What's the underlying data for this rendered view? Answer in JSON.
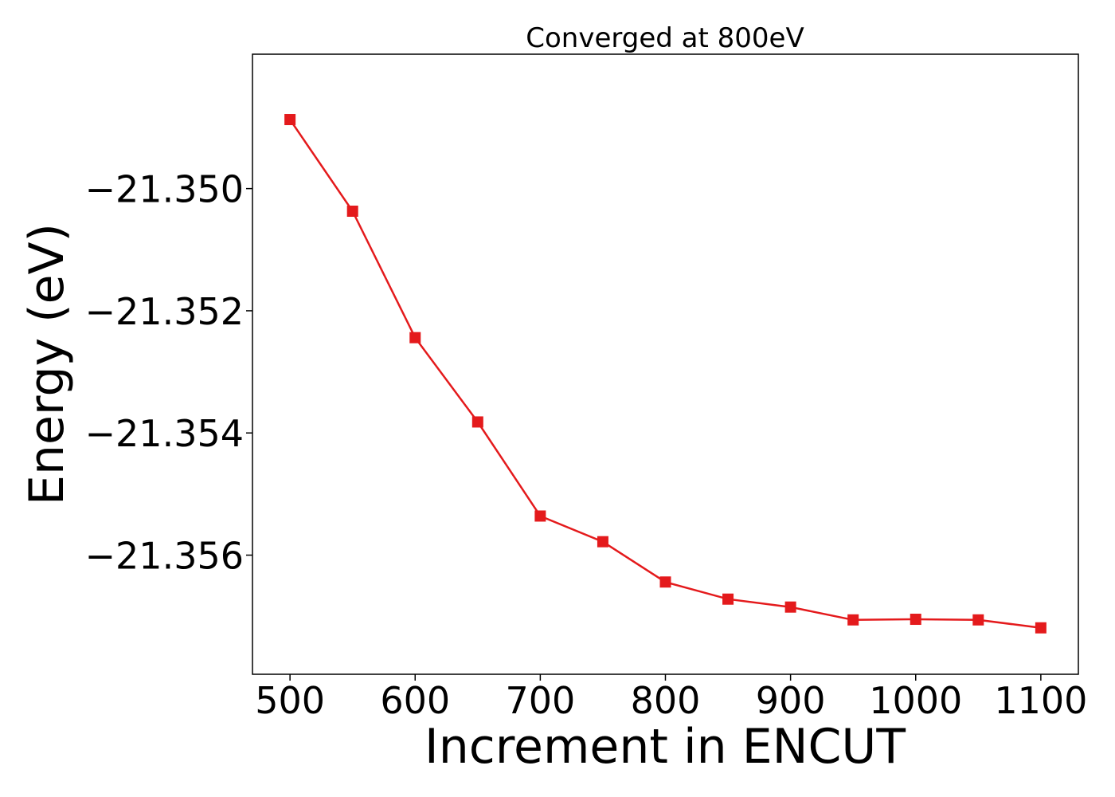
{
  "chart_data": {
    "type": "line",
    "title": "Converged at 800eV",
    "xlabel": "Increment in ENCUT",
    "ylabel": "Energy (eV)",
    "xlim": [
      470,
      1130
    ],
    "ylim": [
      -21.35795,
      -21.3478
    ],
    "xticks": [
      500,
      600,
      700,
      800,
      900,
      1000,
      1100
    ],
    "xtick_labels": [
      "500",
      "600",
      "700",
      "800",
      "900",
      "1000",
      "1100"
    ],
    "yticks": [
      -21.35,
      -21.352,
      -21.354,
      -21.356
    ],
    "ytick_labels": [
      "−21.350",
      "−21.352",
      "−21.354",
      "−21.356"
    ],
    "grid": false,
    "legend": "none",
    "series": [
      {
        "color": "#e41a1c",
        "marker": "square",
        "x": [
          500,
          550,
          600,
          650,
          700,
          750,
          800,
          850,
          900,
          950,
          1000,
          1050,
          1100
        ],
        "y": [
          -21.34887,
          -21.35037,
          -21.35244,
          -21.35382,
          -21.35536,
          -21.35578,
          -21.35644,
          -21.35672,
          -21.35685,
          -21.35706,
          -21.35705,
          -21.35706,
          -21.35719
        ]
      }
    ]
  }
}
